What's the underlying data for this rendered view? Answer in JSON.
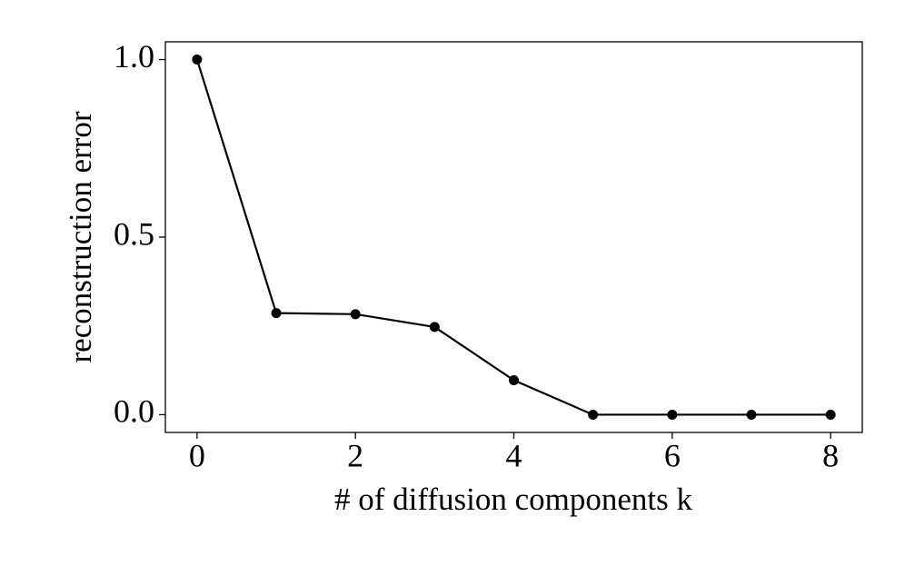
{
  "chart_data": {
    "type": "line",
    "x_label": "# of diffusion components k",
    "y_label": "reconstruction error",
    "x": [
      0,
      1,
      2,
      3,
      4,
      5,
      6,
      7,
      8
    ],
    "values": [
      1.0,
      0.286,
      0.283,
      0.247,
      0.097,
      0.0,
      0.0,
      0.0,
      0.0
    ],
    "color": "#000000",
    "xlim": [
      -0.4,
      8.4
    ],
    "xticks": [
      0,
      2,
      4,
      6,
      8
    ],
    "ylim": [
      -0.05,
      1.05
    ],
    "yticks": [
      {
        "value": 0,
        "label": "0.0"
      },
      {
        "value": 0.5,
        "label": "0.5"
      },
      {
        "value": 1,
        "label": "1.0"
      }
    ],
    "grid": false
  }
}
